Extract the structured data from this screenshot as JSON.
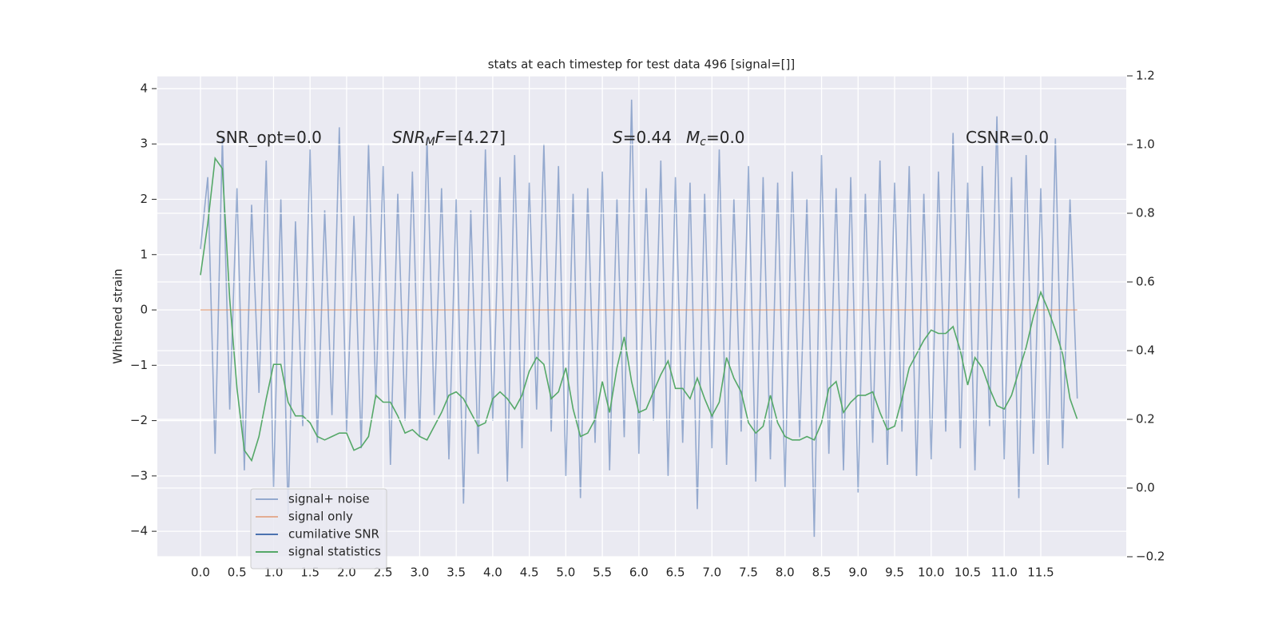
{
  "chart_data": {
    "type": "line",
    "title": "stats at each timestep for test data 496 [signal=[]]",
    "ylabel": "Whitened strain",
    "x": [
      0.0,
      0.1,
      0.2,
      0.3,
      0.4,
      0.5,
      0.6,
      0.7,
      0.8,
      0.9,
      1.0,
      1.1,
      1.2,
      1.3,
      1.4,
      1.5,
      1.6,
      1.7,
      1.8,
      1.9,
      2.0,
      2.1,
      2.2,
      2.3,
      2.4,
      2.5,
      2.6,
      2.7,
      2.8,
      2.9,
      3.0,
      3.1,
      3.2,
      3.3,
      3.4,
      3.5,
      3.6,
      3.7,
      3.8,
      3.9,
      4.0,
      4.1,
      4.2,
      4.3,
      4.4,
      4.5,
      4.6,
      4.7,
      4.8,
      4.9,
      5.0,
      5.1,
      5.2,
      5.3,
      5.4,
      5.5,
      5.6,
      5.7,
      5.8,
      5.9,
      6.0,
      6.1,
      6.2,
      6.3,
      6.4,
      6.5,
      6.6,
      6.7,
      6.8,
      6.9,
      7.0,
      7.1,
      7.2,
      7.3,
      7.4,
      7.5,
      7.6,
      7.7,
      7.8,
      7.9,
      8.0,
      8.1,
      8.2,
      8.3,
      8.4,
      8.5,
      8.6,
      8.7,
      8.8,
      8.9,
      9.0,
      9.1,
      9.2,
      9.3,
      9.4,
      9.5,
      9.6,
      9.7,
      9.8,
      9.9,
      10.0,
      10.1,
      10.2,
      10.3,
      10.4,
      10.5,
      10.6,
      10.7,
      10.8,
      10.9,
      11.0,
      11.1,
      11.2,
      11.3,
      11.4,
      11.5,
      11.6,
      11.7,
      11.8,
      11.9,
      12.0
    ],
    "series": [
      {
        "name": "signal+ noise",
        "color": "#4c72b0",
        "opacity": 0.55,
        "values": [
          1.1,
          2.4,
          -2.6,
          3.1,
          -1.8,
          2.2,
          -2.9,
          1.9,
          -1.5,
          2.7,
          -3.2,
          2.0,
          -3.7,
          1.6,
          -2.1,
          2.9,
          -2.4,
          1.8,
          -1.9,
          3.3,
          -2.2,
          1.7,
          -2.5,
          3.0,
          -1.6,
          2.6,
          -2.8,
          2.1,
          -2.0,
          2.5,
          -2.3,
          3.1,
          -1.9,
          2.2,
          -2.7,
          2.0,
          -3.5,
          1.8,
          -2.6,
          2.9,
          -2.0,
          2.4,
          -3.1,
          2.8,
          -2.5,
          2.3,
          -1.8,
          3.0,
          -2.2,
          2.6,
          -3.0,
          2.1,
          -3.4,
          2.2,
          -2.4,
          2.5,
          -2.9,
          2.0,
          -2.3,
          3.8,
          -2.6,
          2.2,
          -2.0,
          2.7,
          -3.0,
          2.4,
          -2.4,
          2.3,
          -3.6,
          2.1,
          -2.5,
          2.9,
          -2.8,
          2.0,
          -2.2,
          2.6,
          -3.1,
          2.4,
          -2.7,
          2.3,
          -3.2,
          2.5,
          -2.3,
          2.0,
          -4.1,
          2.8,
          -2.6,
          2.2,
          -2.9,
          2.4,
          -3.3,
          2.1,
          -2.4,
          2.7,
          -2.8,
          2.3,
          -2.2,
          2.6,
          -3.0,
          2.1,
          -2.7,
          2.5,
          -2.2,
          3.2,
          -2.5,
          2.3,
          -2.9,
          2.6,
          -2.1,
          3.5,
          -2.7,
          2.4,
          -3.4,
          2.8,
          -2.6,
          2.2,
          -2.8,
          3.1,
          -2.5,
          2.0,
          -1.6
        ]
      },
      {
        "name": "signal only",
        "color": "#dd8452",
        "opacity": 0.6,
        "x": [
          0.0,
          12.0
        ],
        "values": [
          0,
          0
        ]
      },
      {
        "name": "cumilative SNR",
        "color": "#4c72b0",
        "opacity": 1,
        "x": [],
        "values": []
      },
      {
        "name": "signal statistics",
        "color": "#55a868",
        "opacity": 1,
        "axis": "y2",
        "values": [
          0.62,
          0.77,
          0.96,
          0.93,
          0.55,
          0.29,
          0.11,
          0.08,
          0.15,
          0.26,
          0.36,
          0.36,
          0.25,
          0.21,
          0.21,
          0.19,
          0.15,
          0.14,
          0.15,
          0.16,
          0.16,
          0.11,
          0.12,
          0.15,
          0.27,
          0.25,
          0.25,
          0.21,
          0.16,
          0.17,
          0.15,
          0.14,
          0.18,
          0.22,
          0.27,
          0.28,
          0.26,
          0.22,
          0.18,
          0.19,
          0.26,
          0.28,
          0.26,
          0.23,
          0.27,
          0.34,
          0.38,
          0.36,
          0.26,
          0.28,
          0.35,
          0.23,
          0.15,
          0.16,
          0.2,
          0.31,
          0.22,
          0.35,
          0.44,
          0.31,
          0.22,
          0.23,
          0.28,
          0.33,
          0.37,
          0.29,
          0.29,
          0.26,
          0.32,
          0.26,
          0.21,
          0.25,
          0.38,
          0.32,
          0.28,
          0.19,
          0.16,
          0.18,
          0.27,
          0.19,
          0.15,
          0.14,
          0.14,
          0.15,
          0.14,
          0.19,
          0.29,
          0.31,
          0.22,
          0.25,
          0.27,
          0.27,
          0.28,
          0.22,
          0.17,
          0.18,
          0.26,
          0.35,
          0.39,
          0.43,
          0.46,
          0.45,
          0.45,
          0.47,
          0.4,
          0.3,
          0.38,
          0.35,
          0.29,
          0.24,
          0.23,
          0.27,
          0.34,
          0.41,
          0.5,
          0.57,
          0.52,
          0.46,
          0.39,
          0.26,
          0.2
        ]
      }
    ],
    "xlim": [
      -0.59,
      12.67
    ],
    "xticks": [
      {
        "value": 0,
        "label": "0.0"
      },
      0.5,
      {
        "value": 1,
        "label": "1.0"
      },
      1.5,
      {
        "value": 2,
        "label": "2.0"
      },
      2.5,
      {
        "value": 3,
        "label": "3.0"
      },
      3.5,
      {
        "value": 4,
        "label": "4.0"
      },
      4.5,
      {
        "value": 5,
        "label": "5.0"
      },
      5.5,
      {
        "value": 6,
        "label": "6.0"
      },
      6.5,
      {
        "value": 7,
        "label": "7.0"
      },
      7.5,
      {
        "value": 8,
        "label": "8.0"
      },
      8.5,
      {
        "value": 9,
        "label": "9.0"
      },
      9.5,
      {
        "value": 10,
        "label": "10.0"
      },
      10.5,
      {
        "value": 11,
        "label": "11.0"
      },
      11.5
    ],
    "ylim": [
      -4.46,
      4.23
    ],
    "yticks": [
      {
        "value": -4,
        "label": "−4"
      },
      {
        "value": -3,
        "label": "−3"
      },
      {
        "value": -2,
        "label": "−2"
      },
      {
        "value": -1,
        "label": "−1"
      },
      0,
      1,
      2,
      3,
      4
    ],
    "y2lim": [
      -0.2,
      1.2
    ],
    "y2ticks": [
      {
        "value": -0.2,
        "label": "−0.2"
      },
      {
        "value": 0,
        "label": "0.0"
      },
      0.2,
      0.4,
      0.6,
      0.8,
      {
        "value": 1,
        "label": "1.0"
      },
      1.2
    ],
    "grid": true,
    "legend": "lower left",
    "annotations": [
      {
        "segments": [
          {
            "text": "SNR_opt=0.0"
          }
        ]
      },
      {
        "segments": [
          {
            "text": "SNR",
            "italic": true
          },
          {
            "text": "M",
            "italic": true,
            "sub": true
          },
          {
            "text": "F",
            "italic": true
          },
          {
            "text": "=[4.27]"
          }
        ]
      },
      {
        "segments": [
          {
            "text": "S",
            "italic": true
          },
          {
            "text": "=0.44"
          }
        ]
      },
      {
        "segments": [
          {
            "text": "M",
            "italic": true
          },
          {
            "text": "c",
            "italic": true,
            "sub": true
          },
          {
            "text": "=0.0"
          }
        ]
      },
      {
        "segments": [
          {
            "text": "CSNR=0.0"
          }
        ]
      }
    ]
  }
}
